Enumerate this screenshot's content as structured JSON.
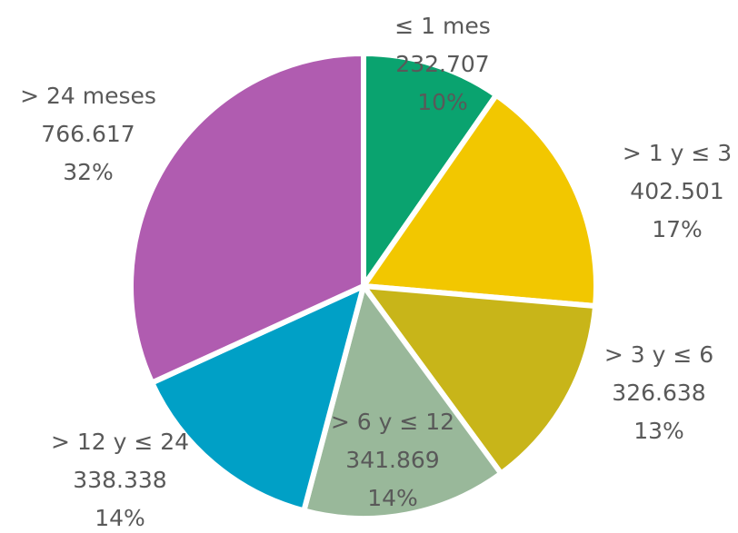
{
  "chart_data": {
    "type": "pie",
    "categories": [
      "≤ 1 mes",
      "> 1 y ≤ 3",
      "> 3 y ≤ 6",
      "> 6 y ≤ 12",
      "> 12 y ≤ 24",
      "> 24 meses"
    ],
    "values": [
      232707,
      402501,
      326638,
      341869,
      338338,
      766617
    ],
    "value_labels": [
      "232.707",
      "402.501",
      "326.638",
      "341.869",
      "338.338",
      "766.617"
    ],
    "percent_labels": [
      "10%",
      "17%",
      "13%",
      "14%",
      "14%",
      "32%"
    ],
    "colors": [
      "#0aa36f",
      "#f2c700",
      "#c8b519",
      "#99b89a",
      "#00a0c6",
      "#b05cb0"
    ]
  }
}
